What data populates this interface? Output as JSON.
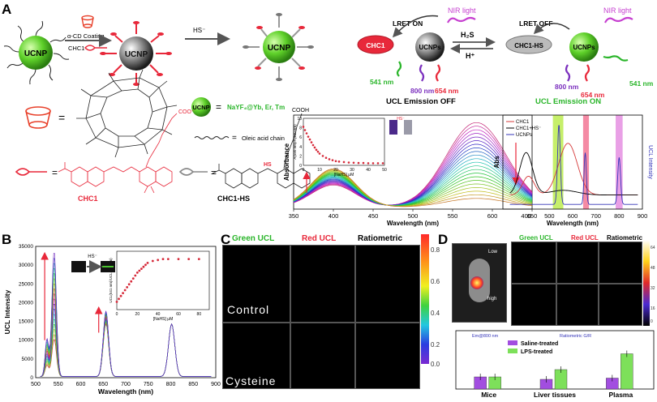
{
  "panelA": {
    "letter": "A",
    "ucnp": "UCNP",
    "ucnps": "UCNPs",
    "coating": "α-CD Coating",
    "chc1_small": "CHC1",
    "hs_arrow": "HS⁻",
    "nir_left": "NIR light",
    "nir_right": "NIR light",
    "lret_on": "LRET ON",
    "lret_off": "LRET OFF",
    "chc1_bubble": "CHC1",
    "chc1hs_bubble": "CHC1-HS",
    "h2s": "H₂S",
    "hplus": "H⁺",
    "nm541_left": "541 nm",
    "nm800_left": "800 nm",
    "nm654_left": "654 nm",
    "nm800_right": "800 nm",
    "nm654_right": "654 nm",
    "nm541_right": "541 nm",
    "ucl_off": "UCL  Emission OFF",
    "ucl_on": "UCL  Emission ON",
    "legend_formula": "NaYF₄@Yb, Er, Tm",
    "legend_oleic": "Oleic acid chain",
    "chc1_name": "CHC1",
    "chc1hs_name": "CHC1-HS",
    "cooh": "COOH",
    "coo": "COO⁻"
  },
  "colors": {
    "red": "#e8283a",
    "green": "#2ab52a",
    "purple": "#7b2fbe",
    "magenta": "#c63fd0",
    "gray": "#888888"
  },
  "chart_data": [
    {
      "id": "absorbance",
      "type": "line",
      "xlabel": "Wavelength (nm)",
      "ylabel": "Absorbance",
      "xlim": [
        350,
        650
      ],
      "x_ticks": [
        "350",
        "400",
        "450",
        "500",
        "550",
        "600",
        "650"
      ],
      "peaks": {
        "low_nm": 400,
        "high_nm": 580
      },
      "series_count": 22,
      "inset": {
        "xlabel": "[NaHS] μM",
        "ylabel": "A(580 nm)/A(400 nm)",
        "x_ticks": [
          "0",
          "10",
          "20",
          "30",
          "40",
          "50"
        ],
        "y_ticks": [
          "0",
          "2",
          "4",
          "6",
          "8",
          "10"
        ],
        "hs_label": "HS⁻",
        "x": [
          0,
          1,
          2,
          3,
          4,
          5,
          6,
          7,
          8,
          9,
          10,
          12,
          14,
          16,
          18,
          20,
          22,
          25,
          28,
          31,
          34,
          37,
          40,
          43,
          46,
          49
        ],
        "y": [
          8.2,
          7.5,
          6.8,
          6.1,
          5.5,
          4.9,
          4.3,
          3.8,
          3.3,
          2.9,
          2.5,
          2.0,
          1.6,
          1.3,
          1.1,
          0.9,
          0.8,
          0.7,
          0.6,
          0.55,
          0.5,
          0.5,
          0.45,
          0.45,
          0.45,
          0.45
        ]
      }
    },
    {
      "id": "abs-vs-ucl",
      "type": "line",
      "xlabel": "Wavelength (nm)",
      "ylabel_left": "Abs",
      "ylabel_right": "UCL Intensity",
      "xlim": [
        300,
        900
      ],
      "x_ticks": [
        "400",
        "500",
        "600",
        "700",
        "800",
        "900"
      ],
      "legend": [
        "CHC1",
        "CHC1+HS⁻",
        "UCNPs"
      ],
      "legend_colors": [
        "#d63a3a",
        "#000000",
        "#3434b8"
      ],
      "bands": [
        {
          "from": 515,
          "to": 560,
          "color": "#c6ef6a"
        },
        {
          "from": 645,
          "to": 670,
          "color": "#f48aa4"
        },
        {
          "from": 785,
          "to": 815,
          "color": "#e9a0e6"
        }
      ]
    },
    {
      "id": "ucl-spectra",
      "type": "line",
      "xlabel": "Wavelength (nm)",
      "ylabel": "UCL Intensity",
      "xlim": [
        500,
        900
      ],
      "ylim": [
        0,
        35000
      ],
      "x_ticks": [
        "500",
        "550",
        "600",
        "650",
        "700",
        "750",
        "800",
        "850",
        "900"
      ],
      "y_ticks": [
        "0",
        "5000",
        "10000",
        "15000",
        "20000",
        "25000",
        "30000",
        "35000"
      ],
      "hs_label": "HS⁻",
      "peaks": [
        {
          "nm": 541,
          "min": 10000,
          "max": 33500
        },
        {
          "nm": 654,
          "min": 14000,
          "max": 17500
        },
        {
          "nm": 800,
          "min": 14000,
          "max": 14000
        }
      ],
      "inset": {
        "xlabel": "[NaHS] μM",
        "ylabel": "UCL(541 nm)/UCL(800 nm)",
        "x_ticks": [
          "0",
          "20",
          "40",
          "60",
          "80"
        ],
        "x": [
          0,
          2,
          4,
          6,
          8,
          10,
          12,
          14,
          16,
          18,
          20,
          22,
          24,
          26,
          28,
          30,
          35,
          40,
          45,
          50,
          60,
          70,
          80
        ],
        "y": [
          0.4,
          0.55,
          0.7,
          0.85,
          1.0,
          1.15,
          1.3,
          1.45,
          1.6,
          1.75,
          1.9,
          2.0,
          2.1,
          2.2,
          2.3,
          2.4,
          2.5,
          2.55,
          2.6,
          2.6,
          2.6,
          2.6,
          2.6
        ]
      }
    },
    {
      "id": "mice-bar",
      "type": "bar",
      "categories": [
        "Mice",
        "Liver tissues",
        "Plasma"
      ],
      "series": [
        {
          "name": "Saline-treated",
          "values": [
            1.0,
            0.8,
            0.9
          ]
        },
        {
          "name": "LPS-treated",
          "values": [
            1.0,
            1.6,
            2.9
          ]
        }
      ],
      "series_colors": [
        "#a24ee0",
        "#7de05a"
      ],
      "annot_left": "Em@800 nm",
      "annot_right": "Ratiometric G/R"
    }
  ],
  "panelB": {
    "letter": "B"
  },
  "panelC": {
    "letter": "C",
    "col_green": "Green UCL",
    "col_red": "Red UCL",
    "col_ratio": "Ratiometric",
    "row_control": "Control",
    "row_cysteine": "Cysteine",
    "scale_ticks": [
      "0.8",
      "0.6",
      "0.4",
      "0.2",
      "0.0"
    ]
  },
  "panelD": {
    "letter": "D",
    "col_green": "Green UCL",
    "col_red": "Red UCL",
    "col_ratio": "Ratiometric",
    "low": "Low",
    "high": "high",
    "scale_ticks": [
      "64",
      "48",
      "32",
      "16",
      "0"
    ]
  }
}
